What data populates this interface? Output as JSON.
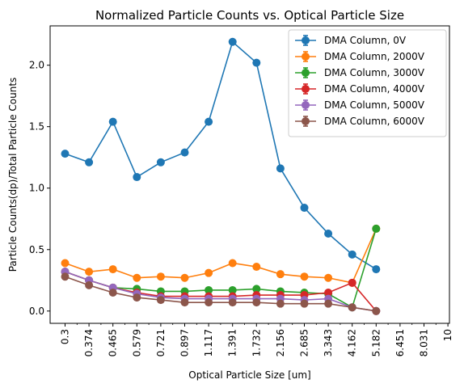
{
  "chart_data": {
    "type": "line",
    "title": "Normalized Particle Counts vs. Optical Particle Size",
    "xlabel": "Optical Particle Size [um]",
    "ylabel": "Particle Counts(dp)/Total Particle Counts",
    "x_tick_labels": [
      "0.3",
      "0.374",
      "0.465",
      "0.579",
      "0.721",
      "0.897",
      "1.117",
      "1.391",
      "1.732",
      "2.156",
      "2.685",
      "3.343",
      "4.162",
      "5.182",
      "6.451",
      "8.031",
      "10"
    ],
    "y_ticks": [
      0.0,
      0.5,
      1.0,
      1.5,
      2.0
    ],
    "ylim": [
      -0.1,
      2.32
    ],
    "legend_position": "top-right",
    "grid": false,
    "series": [
      {
        "name": "DMA Column, 0V",
        "color": "#1f77b4",
        "values": [
          1.28,
          1.21,
          1.54,
          1.09,
          1.21,
          1.29,
          1.54,
          2.19,
          2.02,
          1.16,
          0.84,
          0.63,
          0.46,
          0.34
        ]
      },
      {
        "name": "DMA Column, 2000V",
        "color": "#ff7f0e",
        "values": [
          0.39,
          0.32,
          0.34,
          0.27,
          0.28,
          0.27,
          0.31,
          0.39,
          0.36,
          0.3,
          0.28,
          0.27,
          0.23,
          0.67
        ]
      },
      {
        "name": "DMA Column, 3000V",
        "color": "#2ca02c",
        "values": [
          0.32,
          0.25,
          0.19,
          0.18,
          0.16,
          0.16,
          0.17,
          0.17,
          0.18,
          0.16,
          0.15,
          0.14,
          0.03,
          0.67
        ]
      },
      {
        "name": "DMA Column, 4000V",
        "color": "#d62728",
        "values": [
          0.32,
          0.25,
          0.19,
          0.15,
          0.12,
          0.12,
          0.12,
          0.12,
          0.13,
          0.13,
          0.13,
          0.15,
          0.23,
          0.0
        ]
      },
      {
        "name": "DMA Column, 5000V",
        "color": "#9467bd",
        "values": [
          0.32,
          0.25,
          0.19,
          0.14,
          0.11,
          0.1,
          0.1,
          0.1,
          0.1,
          0.1,
          0.09,
          0.1,
          0.03,
          0.0
        ]
      },
      {
        "name": "DMA Column, 6000V",
        "color": "#8c564b",
        "values": [
          0.28,
          0.21,
          0.15,
          0.11,
          0.09,
          0.07,
          0.07,
          0.07,
          0.07,
          0.06,
          0.06,
          0.06,
          0.03,
          0.0
        ]
      }
    ]
  }
}
